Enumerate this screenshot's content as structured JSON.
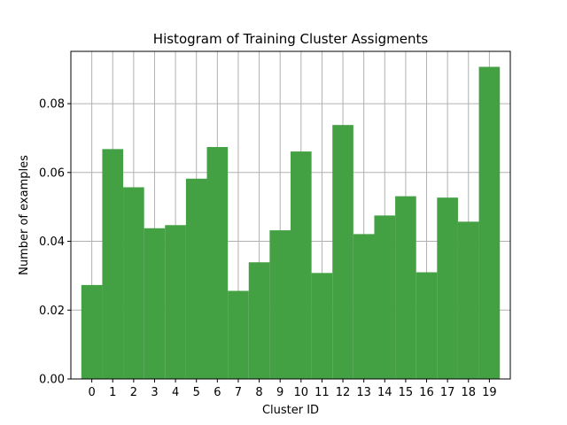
{
  "chart_data": {
    "type": "bar",
    "title": "Histogram of Training Cluster Assigments",
    "xlabel": "Cluster ID",
    "ylabel": "Number of examples",
    "categories": [
      "0",
      "1",
      "2",
      "3",
      "4",
      "5",
      "6",
      "7",
      "8",
      "9",
      "10",
      "11",
      "12",
      "13",
      "14",
      "15",
      "16",
      "17",
      "18",
      "19"
    ],
    "values": [
      0.0273,
      0.0668,
      0.0557,
      0.0438,
      0.0447,
      0.0582,
      0.0674,
      0.0256,
      0.0339,
      0.0432,
      0.0661,
      0.0308,
      0.0738,
      0.0421,
      0.0475,
      0.0531,
      0.031,
      0.0527,
      0.0457,
      0.0907
    ],
    "ylim": [
      0,
      0.0952
    ],
    "yticks": [
      0.0,
      0.02,
      0.04,
      0.06,
      0.08
    ],
    "ytick_labels": [
      "0.00",
      "0.02",
      "0.04",
      "0.06",
      "0.08"
    ],
    "grid": true,
    "bar_color": "#43a043"
  }
}
